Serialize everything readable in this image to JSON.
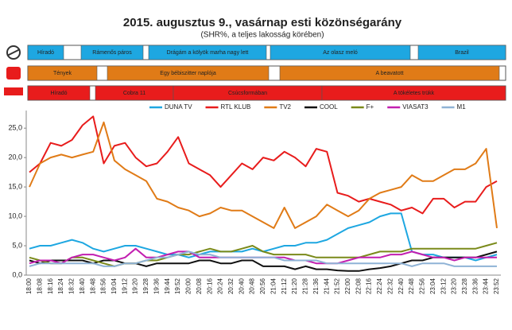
{
  "chart_data": {
    "type": "line",
    "title": "2015. augusztus 9., vasárnap esti közönségarány",
    "subtitle": "(SHR%, a teljes lakosság körében)",
    "schedule": [
      {
        "color": "#1ea7e1",
        "programs": [
          "Híradó",
          "Rámenős páros",
          "Drágám a kölyök marha nagy lett",
          "Az olasz meló",
          "Brazil"
        ]
      },
      {
        "color": "#e07b17",
        "programs": [
          "Tények",
          "Egy bébiszitter naplója",
          "A beavatott"
        ]
      },
      {
        "color": "#e81c1c",
        "programs": [
          "Híradó",
          "Cobra 11",
          "Csúcsformában",
          "A tökéletes trükk"
        ]
      }
    ],
    "categories": [
      "18:00",
      "18:08",
      "18:16",
      "18:24",
      "18:32",
      "18:40",
      "18:48",
      "18:56",
      "19:04",
      "19:12",
      "19:20",
      "19:28",
      "19:36",
      "19:44",
      "19:52",
      "20:00",
      "20:08",
      "20:16",
      "20:24",
      "20:32",
      "20:40",
      "20:48",
      "20:56",
      "21:04",
      "21:12",
      "21:20",
      "21:28",
      "21:36",
      "21:44",
      "21:52",
      "22:00",
      "22:08",
      "22:16",
      "22:24",
      "22:32",
      "22:40",
      "22:48",
      "22:56",
      "23:04",
      "23:12",
      "23:20",
      "23:28",
      "23:36",
      "23:44",
      "23:52"
    ],
    "series": [
      {
        "name": "DUNA TV",
        "color": "#1ea7e1",
        "values": [
          4.5,
          5,
          5,
          5.5,
          6,
          5.5,
          4.5,
          4,
          4.5,
          5,
          5,
          4.5,
          4,
          3.5,
          3.5,
          3,
          3.5,
          4,
          4,
          4,
          4,
          4.5,
          4,
          4.5,
          5,
          5,
          5.5,
          5.5,
          6,
          7,
          8,
          8.5,
          9,
          10,
          10.5,
          10.5,
          4,
          3.5,
          3.5,
          3,
          3,
          3,
          2.5,
          3,
          3.5
        ]
      },
      {
        "name": "RTL KLUB",
        "color": "#e81c1c",
        "values": [
          17.5,
          19,
          22.5,
          22,
          23,
          25.5,
          27,
          19,
          22,
          22.5,
          20,
          18.5,
          19,
          21,
          23.5,
          19,
          18,
          17,
          15,
          17,
          19,
          18,
          20,
          19.5,
          21,
          20,
          18.5,
          21.5,
          21,
          14,
          13.5,
          12.5,
          13,
          12.5,
          12,
          11,
          11.5,
          10.5,
          13,
          13,
          11.5,
          12.5,
          12.5,
          15,
          16
        ]
      },
      {
        "name": "TV2",
        "color": "#e07b17",
        "values": [
          15,
          19,
          20,
          20.5,
          20,
          20.5,
          21,
          26,
          19.5,
          18,
          17,
          16,
          13,
          12.5,
          11.5,
          11,
          10,
          10.5,
          11.5,
          11,
          11,
          10,
          9,
          8,
          11.5,
          8,
          9,
          10,
          12,
          11,
          10,
          11,
          13,
          14,
          14.5,
          15,
          17,
          16,
          16,
          17,
          18,
          18,
          19,
          21.5,
          8
        ]
      },
      {
        "name": "COOL",
        "color": "#111111",
        "values": [
          2.5,
          2,
          2.5,
          2.5,
          2.5,
          2.5,
          2,
          2.5,
          2.5,
          2,
          2,
          1.5,
          2,
          2,
          2,
          2,
          2.5,
          2.5,
          2,
          2,
          2.5,
          2.5,
          1.5,
          1.5,
          1.5,
          1,
          1.5,
          1,
          1,
          0.8,
          0.7,
          0.7,
          1,
          1.2,
          1.5,
          2,
          2.5,
          2.5,
          3,
          3,
          3,
          3,
          3,
          3.5,
          4
        ]
      },
      {
        "name": "F+",
        "color": "#7a8a1a",
        "values": [
          3,
          2.5,
          2,
          2,
          3,
          3,
          2.5,
          2,
          1.5,
          2,
          2,
          2.5,
          2.5,
          3,
          3.5,
          3.5,
          4,
          4.5,
          4,
          4,
          4.5,
          5,
          4,
          3.5,
          3.5,
          3.5,
          3.5,
          3,
          3,
          3,
          3,
          3,
          3.5,
          4,
          4,
          4,
          4.5,
          4.5,
          4.5,
          4.5,
          4.5,
          4.5,
          4.5,
          5,
          5.5
        ]
      },
      {
        "name": "VIASAT3",
        "color": "#c21fb0",
        "values": [
          2,
          2.5,
          2.5,
          2,
          3,
          3.5,
          3.5,
          3,
          2.5,
          3,
          4.5,
          3,
          3,
          3.5,
          4,
          4,
          3,
          3,
          3,
          3,
          3,
          3,
          3,
          3,
          3,
          2.5,
          2.5,
          2,
          2,
          2,
          2.5,
          3,
          3,
          3,
          3.5,
          3.5,
          4,
          3.5,
          3,
          3,
          2.5,
          3,
          3,
          3,
          3
        ]
      },
      {
        "name": "M1",
        "color": "#8fb3d6",
        "values": [
          1.5,
          2,
          2,
          2,
          2,
          2,
          2,
          1.5,
          1.5,
          2,
          2,
          2.5,
          3,
          3,
          3.5,
          4,
          3.5,
          3.5,
          3,
          3,
          3,
          3,
          3,
          3,
          2.5,
          2.5,
          2.5,
          2.5,
          2,
          2,
          2,
          2,
          2,
          2,
          2,
          2,
          1.5,
          2,
          2,
          2,
          1.5,
          1.5,
          1.5,
          1.5,
          1.5
        ]
      }
    ],
    "ylim": [
      0,
      28
    ],
    "yticks": [
      {
        "value": 0,
        "label": "0,0"
      },
      {
        "value": 5,
        "label": "5,0"
      },
      {
        "value": 10,
        "label": "10,0"
      },
      {
        "value": 15,
        "label": "15,0"
      },
      {
        "value": 20,
        "label": "20,0"
      },
      {
        "value": 25,
        "label": "25,0"
      }
    ],
    "grid": false,
    "legend": "top"
  }
}
